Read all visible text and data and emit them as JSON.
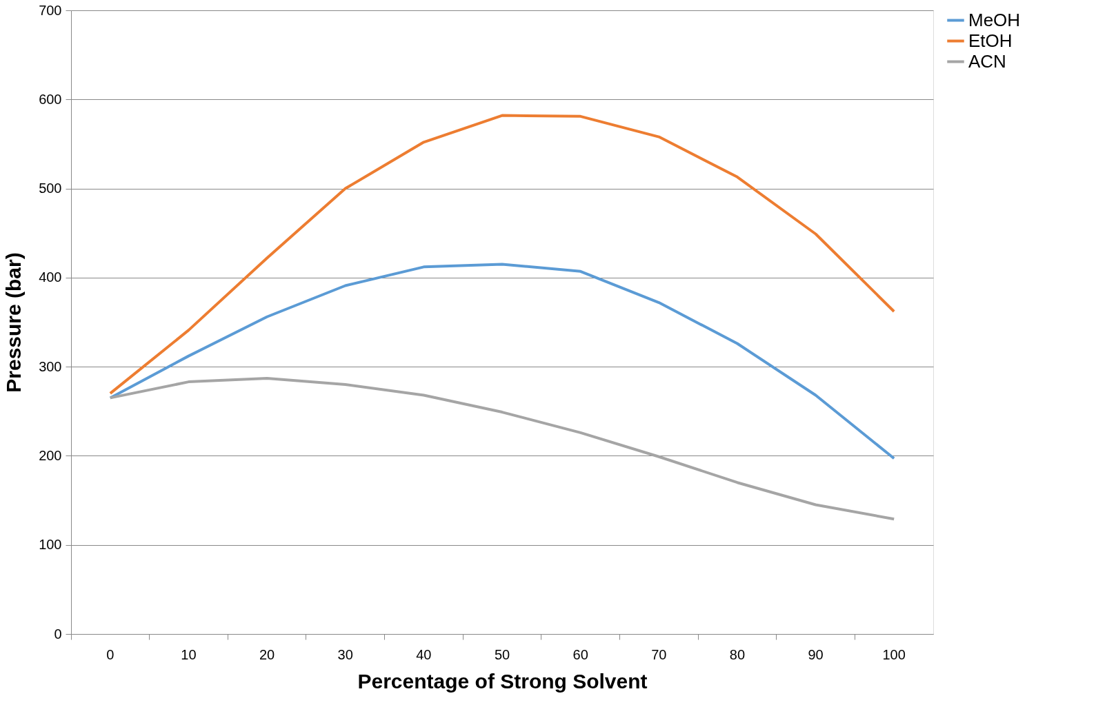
{
  "chart_data": {
    "type": "line",
    "xlabel": "Percentage of Strong Solvent",
    "ylabel": "Pressure (bar)",
    "categories": [
      "0",
      "10",
      "20",
      "30",
      "40",
      "50",
      "60",
      "70",
      "80",
      "90",
      "100"
    ],
    "series": [
      {
        "name": "MeOH",
        "color": "#5b9bd5",
        "values": [
          265,
          312,
          356,
          391,
          412,
          415,
          407,
          372,
          326,
          268,
          197
        ]
      },
      {
        "name": "EtOH",
        "color": "#ed7d31",
        "values": [
          270,
          341,
          422,
          500,
          552,
          582,
          581,
          558,
          513,
          449,
          362
        ]
      },
      {
        "name": "ACN",
        "color": "#a5a5a5",
        "values": [
          265,
          283,
          287,
          280,
          268,
          249,
          226,
          199,
          170,
          145,
          129
        ]
      }
    ],
    "ylim": [
      0,
      700
    ],
    "yticks": [
      0,
      100,
      200,
      300,
      400,
      500,
      600,
      700
    ],
    "grid": "y",
    "legend": "right",
    "marker": "none",
    "line_style": "solid"
  }
}
